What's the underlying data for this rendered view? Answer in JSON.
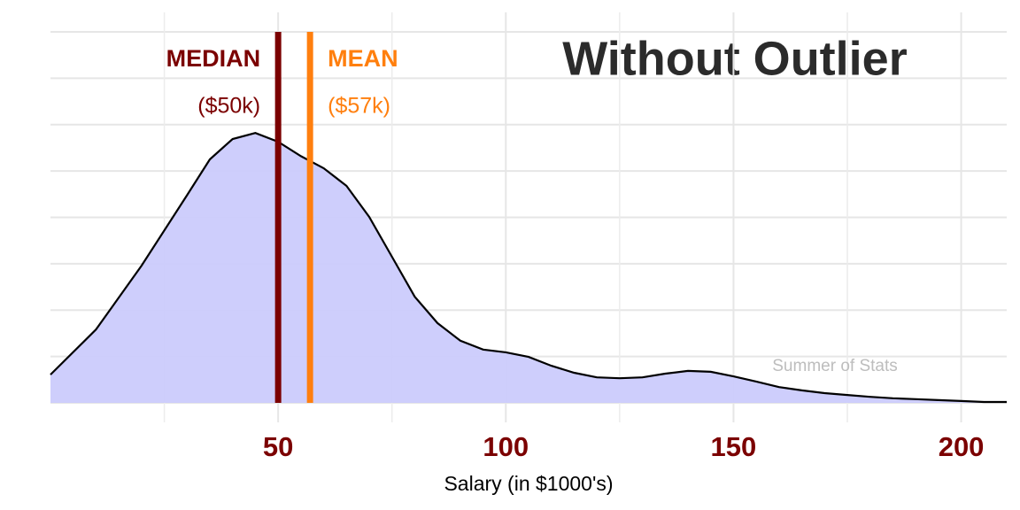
{
  "chart_data": {
    "type": "density",
    "title": "Without Outlier",
    "xlabel": "Salary (in $1000's)",
    "watermark": "Summer of Stats",
    "x": [
      0,
      10,
      20,
      30,
      35,
      40,
      45,
      50,
      55,
      60,
      65,
      70,
      75,
      80,
      85,
      90,
      95,
      100,
      105,
      110,
      115,
      120,
      125,
      130,
      135,
      140,
      145,
      150,
      155,
      160,
      165,
      170,
      175,
      180,
      185,
      190,
      195,
      200,
      205,
      210
    ],
    "values": [
      0.61,
      1.58,
      2.96,
      4.48,
      5.25,
      5.69,
      5.82,
      5.63,
      5.32,
      5.06,
      4.68,
      4.01,
      3.15,
      2.29,
      1.72,
      1.34,
      1.15,
      1.09,
      0.99,
      0.8,
      0.65,
      0.55,
      0.53,
      0.55,
      0.63,
      0.69,
      0.67,
      0.57,
      0.46,
      0.34,
      0.27,
      0.21,
      0.17,
      0.13,
      0.1,
      0.08,
      0.06,
      0.04,
      0.02,
      0.02
    ],
    "fill": "#cbcbfc",
    "stroke": "#000000",
    "xlim": [
      0,
      210
    ],
    "xticks": [
      50,
      100,
      150,
      200
    ],
    "xminor": [
      25,
      75,
      125,
      175
    ],
    "ylim": [
      0,
      8
    ],
    "ygrid": [
      0,
      1,
      2,
      3,
      4,
      5,
      6,
      7,
      8
    ],
    "grid": true,
    "tick_color": "#7b0000",
    "markers": [
      {
        "label": "MEDIAN",
        "value": 50,
        "value_label": "($50k)",
        "color": "#7b0000",
        "side": "left"
      },
      {
        "label": "MEAN",
        "value": 57,
        "value_label": "($57k)",
        "color": "#ff7f0e",
        "side": "right"
      }
    ]
  }
}
